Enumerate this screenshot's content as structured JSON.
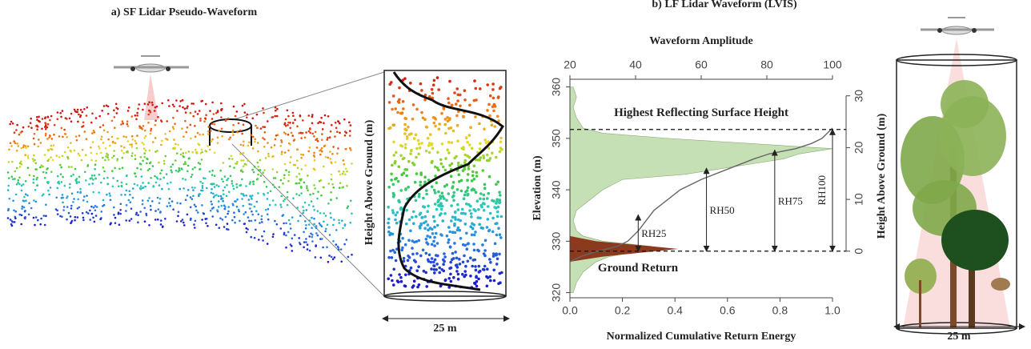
{
  "panel_a": {
    "title": "a) SF Lidar Pseudo-Waveform",
    "y_label": "Height Above Ground (m)",
    "scale_label": "25 m"
  },
  "panel_c": {
    "scale_label": "25 m"
  },
  "chart_data": {
    "type": "line",
    "title": "b) LF Lidar Waveform (LVIS)",
    "x_label": "Normalized Cumulative Return Energy",
    "x2_label": "Waveform Amplitude",
    "y_label": "Elevation (m)",
    "y2_label": "Height Above Ground (m)",
    "xlim": [
      0,
      1
    ],
    "xticks": [
      {
        "value": 0,
        "label": "0.0"
      },
      0.2,
      0.4,
      0.6,
      0.8,
      {
        "value": 1,
        "label": "1.0"
      }
    ],
    "x2lim": [
      20,
      100
    ],
    "x2ticks": [
      20,
      40,
      60,
      80,
      100
    ],
    "ylim": [
      319,
      361.5
    ],
    "yticks": [
      320,
      330,
      340,
      350,
      360
    ],
    "y2lim": [
      -9,
      33.2
    ],
    "y2ticks": [
      0,
      10,
      20,
      30
    ],
    "waveform": {
      "color": "#c5e0b4",
      "elevation": [
        320,
        322,
        324,
        326,
        327,
        328,
        329,
        330,
        331,
        332,
        334,
        336,
        338,
        340,
        342,
        343,
        344,
        345,
        346,
        347,
        348,
        349,
        350,
        351,
        352,
        354,
        356,
        358,
        360
      ],
      "amplitude": [
        21,
        22,
        24,
        28,
        32,
        40,
        45,
        30,
        24,
        22,
        21,
        22,
        26,
        30,
        36,
        55,
        65,
        75,
        85,
        90,
        100,
        75,
        50,
        30,
        24,
        22,
        21,
        22,
        21
      ]
    },
    "ground_return": {
      "color": "#8b3a1e",
      "elevation": [
        326,
        327,
        328,
        328.5,
        329,
        330,
        331
      ],
      "amplitude": [
        20,
        30,
        45,
        53,
        45,
        28,
        20
      ]
    },
    "cumulative_energy": {
      "color": "#666666",
      "elevation": [
        326,
        327,
        328,
        329,
        330,
        332,
        336,
        340,
        342,
        344,
        346,
        347,
        348,
        349,
        350,
        352
      ],
      "values": [
        0,
        0.04,
        0.1,
        0.18,
        0.22,
        0.26,
        0.32,
        0.42,
        0.5,
        0.6,
        0.7,
        0.76,
        0.86,
        0.92,
        0.96,
        1.0
      ]
    },
    "highest_surface": {
      "label": "Highest Reflecting Surface Height",
      "height": 23.5
    },
    "ground": {
      "label": "Ground Return",
      "height": 0
    },
    "rh_markers": [
      {
        "label": "RH25",
        "x": 0.26,
        "height": 7
      },
      {
        "label": "RH50",
        "x": 0.52,
        "height": 16
      },
      {
        "label": "RH75",
        "x": 0.78,
        "height": 19.5
      },
      {
        "label": "RH100",
        "x": 1.0,
        "height": 23.5
      }
    ]
  }
}
